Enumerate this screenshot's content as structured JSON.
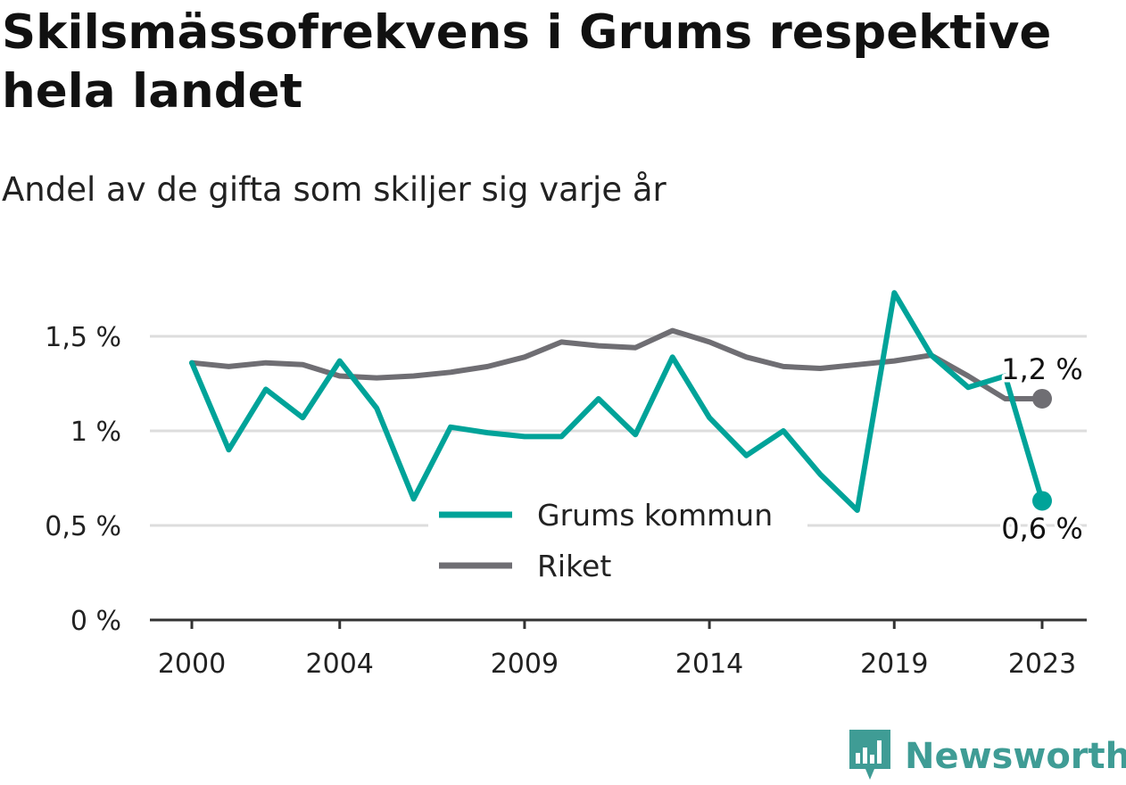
{
  "title": "Skilsmässofrekvens i Grums respektive hela landet",
  "subtitle": "Andel av de gifta som skiljer sig varje år",
  "brand": {
    "name": "Newsworthy",
    "icon": "newsworthy-logo-icon",
    "color": "#3f9c95"
  },
  "chart_data": {
    "type": "line",
    "x": [
      2000,
      2001,
      2002,
      2003,
      2004,
      2005,
      2006,
      2007,
      2008,
      2009,
      2010,
      2011,
      2012,
      2013,
      2014,
      2015,
      2016,
      2017,
      2018,
      2019,
      2020,
      2021,
      2022,
      2023
    ],
    "x_tick_values": [
      2000,
      2004,
      2009,
      2014,
      2019,
      2023
    ],
    "x_tick_labels": [
      "2000",
      "2004",
      "2009",
      "2014",
      "2019",
      "2023"
    ],
    "y_ticks": [
      0,
      0.5,
      1,
      1.5
    ],
    "y_tick_labels": [
      "0 %",
      "0,5 %",
      "1 %",
      "1,5 %"
    ],
    "xlim": [
      2000,
      2023
    ],
    "ylim": [
      0,
      1.8
    ],
    "grid": true,
    "legend_position": "bottom-center",
    "series": [
      {
        "name": "Grums kommun",
        "color": "#00a399",
        "values": [
          1.36,
          0.9,
          1.22,
          1.07,
          1.37,
          1.12,
          0.64,
          1.02,
          0.99,
          0.97,
          0.97,
          1.17,
          0.98,
          1.39,
          1.07,
          0.87,
          1.0,
          0.77,
          0.58,
          1.73,
          1.4,
          1.23,
          1.29,
          0.63
        ],
        "end_label": "0,6 %"
      },
      {
        "name": "Riket",
        "color": "#6f6e73",
        "values": [
          1.36,
          1.34,
          1.36,
          1.35,
          1.29,
          1.28,
          1.29,
          1.31,
          1.34,
          1.39,
          1.47,
          1.45,
          1.44,
          1.53,
          1.47,
          1.39,
          1.34,
          1.33,
          1.35,
          1.37,
          1.4,
          1.29,
          1.17,
          1.17
        ],
        "end_label": "1,2 %"
      }
    ]
  }
}
